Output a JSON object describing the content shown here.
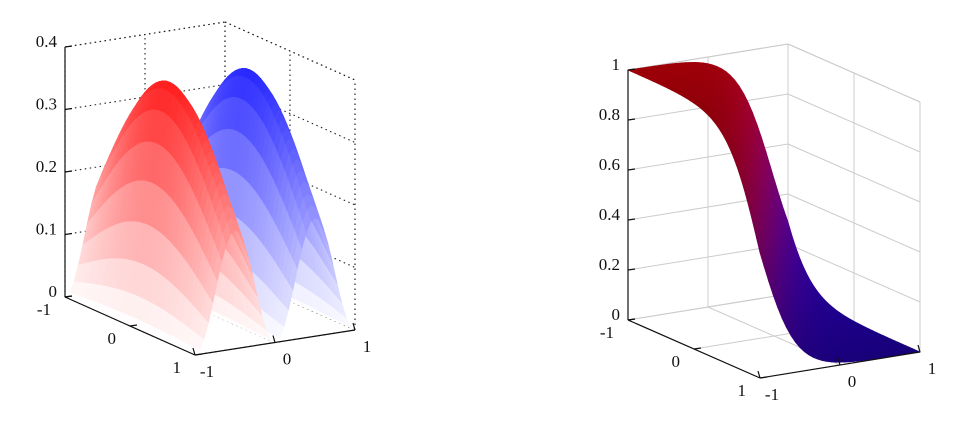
{
  "chart_data": [
    {
      "type": "surface",
      "xlim": [
        -1,
        1
      ],
      "xticks": [
        -1,
        0,
        1
      ],
      "ylim": [
        -1,
        1
      ],
      "yticks": [
        -1,
        0,
        1
      ],
      "zlim": [
        0,
        0.4
      ],
      "zticks": [
        0,
        0.1,
        0.2,
        0.3,
        0.4
      ],
      "grid": true,
      "grid_style": "dotted"
    },
    {
      "type": "surface",
      "xlim": [
        -1,
        1
      ],
      "xticks": [
        -1,
        0,
        1
      ],
      "ylim": [
        -1,
        1
      ],
      "yticks": [
        -1,
        0,
        1
      ],
      "zlim": [
        0,
        1
      ],
      "zticks": [
        0,
        0.2,
        0.4,
        0.6,
        0.8,
        1
      ],
      "grid": true,
      "grid_style": "solid"
    }
  ]
}
